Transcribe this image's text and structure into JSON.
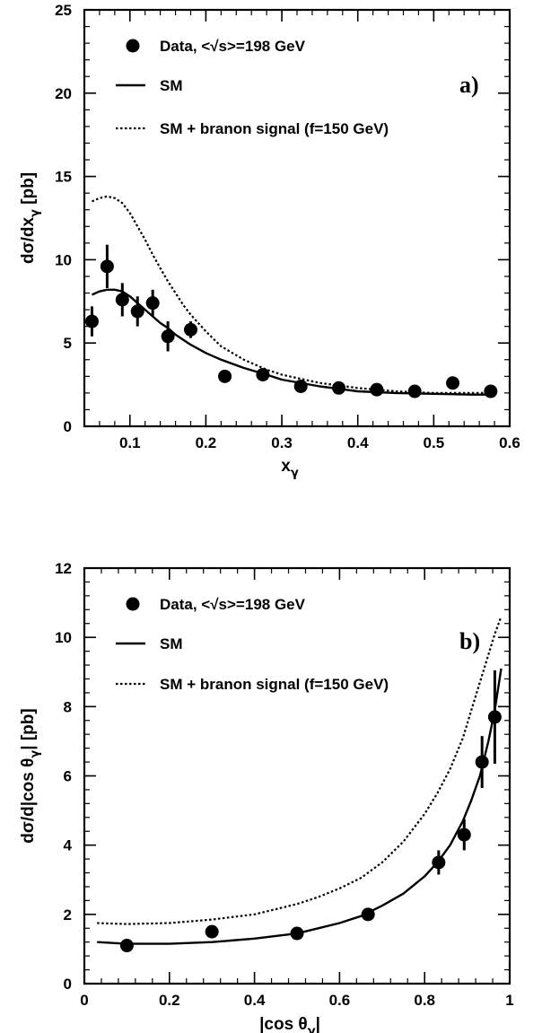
{
  "chart_data": [
    {
      "type": "scatter",
      "panel_label": "a)",
      "xlabel": "x",
      "xlabel_sub": "γ",
      "ylabel": "dσ/dx",
      "ylabel_sub": "γ",
      "ylabel_unit": " [pb]",
      "xlim": [
        0.04,
        0.6
      ],
      "ylim": [
        0,
        25
      ],
      "xticks": [
        0.1,
        0.2,
        0.3,
        0.4,
        0.5,
        0.6
      ],
      "xtick_labels": [
        "0.1",
        "0.2",
        "0.3",
        "0.4",
        "0.5",
        "0.6"
      ],
      "yticks": [
        0,
        5,
        10,
        15,
        20,
        25
      ],
      "ytick_labels": [
        "0",
        "5",
        "10",
        "15",
        "20",
        "25"
      ],
      "grid": false,
      "legend_position": "top-left",
      "legend": [
        "Data, <√s>=198 GeV",
        "SM",
        "SM + branon signal (f=150 GeV)"
      ],
      "series": [
        {
          "name": "Data, <√s>=198 GeV",
          "style": "points",
          "x": [
            0.05,
            0.07,
            0.09,
            0.11,
            0.13,
            0.15,
            0.18,
            0.225,
            0.275,
            0.325,
            0.375,
            0.425,
            0.475,
            0.525,
            0.575
          ],
          "y": [
            6.3,
            9.6,
            7.6,
            6.9,
            7.4,
            5.4,
            5.8,
            3.0,
            3.1,
            2.4,
            2.3,
            2.2,
            2.1,
            2.6,
            2.1
          ],
          "err": [
            0.9,
            1.3,
            1.0,
            0.9,
            0.8,
            0.9,
            0.5,
            0.3,
            0.2,
            0.2,
            0.2,
            0.15,
            0.15,
            0.15,
            0.15
          ]
        },
        {
          "name": "SM",
          "style": "solid",
          "x": [
            0.05,
            0.06,
            0.07,
            0.08,
            0.09,
            0.1,
            0.11,
            0.12,
            0.13,
            0.14,
            0.15,
            0.16,
            0.17,
            0.18,
            0.2,
            0.22,
            0.25,
            0.28,
            0.3,
            0.35,
            0.4,
            0.45,
            0.5,
            0.55,
            0.575
          ],
          "y": [
            7.9,
            8.1,
            8.2,
            8.2,
            8.1,
            7.8,
            7.4,
            7.0,
            6.6,
            6.2,
            5.9,
            5.5,
            5.2,
            4.9,
            4.4,
            4.0,
            3.5,
            3.1,
            2.8,
            2.4,
            2.1,
            2.0,
            1.95,
            1.9,
            1.9
          ]
        },
        {
          "name": "SM + branon signal (f=150 GeV)",
          "style": "dotted",
          "x": [
            0.05,
            0.06,
            0.07,
            0.08,
            0.09,
            0.1,
            0.11,
            0.12,
            0.13,
            0.14,
            0.15,
            0.16,
            0.17,
            0.18,
            0.2,
            0.22,
            0.25,
            0.28,
            0.3,
            0.35,
            0.4,
            0.45,
            0.5,
            0.55,
            0.575
          ],
          "y": [
            13.5,
            13.7,
            13.8,
            13.7,
            13.4,
            12.8,
            12.0,
            11.2,
            10.3,
            9.5,
            8.7,
            8.0,
            7.3,
            6.7,
            5.7,
            4.8,
            4.0,
            3.4,
            3.1,
            2.6,
            2.3,
            2.1,
            2.0,
            2.0,
            2.0
          ]
        }
      ]
    },
    {
      "type": "scatter",
      "panel_label": "b)",
      "xlabel": "|cos θ",
      "xlabel_sub": "γ",
      "xlabel_tail": "|",
      "ylabel": "dσ/d|cos θ",
      "ylabel_sub": "γ",
      "ylabel_unit": "| [pb]",
      "xlim": [
        0,
        1
      ],
      "ylim": [
        0,
        12
      ],
      "xticks": [
        0,
        0.2,
        0.4,
        0.6,
        0.8,
        1
      ],
      "xtick_labels": [
        "0",
        "0.2",
        "0.4",
        "0.6",
        "0.8",
        "1"
      ],
      "yticks": [
        0,
        2,
        4,
        6,
        8,
        10,
        12
      ],
      "ytick_labels": [
        "0",
        "2",
        "4",
        "6",
        "8",
        "10",
        "12"
      ],
      "grid": false,
      "legend_position": "top-left",
      "legend": [
        "Data, <√s>=198 GeV",
        "SM",
        "SM + branon signal (f=150 GeV)"
      ],
      "series": [
        {
          "name": "Data, <√s>=198 GeV",
          "style": "points",
          "x": [
            0.1,
            0.3,
            0.5,
            0.667,
            0.833,
            0.893,
            0.935,
            0.965
          ],
          "y": [
            1.1,
            1.5,
            1.45,
            2.0,
            3.5,
            4.3,
            6.4,
            7.7
          ],
          "err": [
            0.05,
            0.05,
            0.05,
            0.1,
            0.35,
            0.45,
            0.75,
            1.35
          ]
        },
        {
          "name": "SM",
          "style": "solid",
          "x": [
            0.03,
            0.1,
            0.2,
            0.3,
            0.4,
            0.5,
            0.55,
            0.6,
            0.65,
            0.7,
            0.75,
            0.8,
            0.83,
            0.86,
            0.89,
            0.91,
            0.93,
            0.95,
            0.965,
            0.98
          ],
          "y": [
            1.2,
            1.15,
            1.15,
            1.2,
            1.3,
            1.45,
            1.6,
            1.75,
            1.95,
            2.25,
            2.6,
            3.1,
            3.5,
            4.0,
            4.7,
            5.3,
            6.0,
            7.0,
            7.9,
            9.1
          ]
        },
        {
          "name": "SM + branon signal (f=150 GeV)",
          "style": "dotted",
          "x": [
            0.03,
            0.1,
            0.2,
            0.3,
            0.4,
            0.5,
            0.55,
            0.6,
            0.65,
            0.7,
            0.75,
            0.8,
            0.83,
            0.86,
            0.89,
            0.91,
            0.93,
            0.95,
            0.965,
            0.98
          ],
          "y": [
            1.75,
            1.72,
            1.75,
            1.85,
            2.0,
            2.3,
            2.5,
            2.75,
            3.05,
            3.5,
            4.1,
            4.9,
            5.5,
            6.2,
            7.1,
            7.9,
            8.7,
            9.5,
            10.1,
            10.6
          ]
        }
      ]
    }
  ]
}
